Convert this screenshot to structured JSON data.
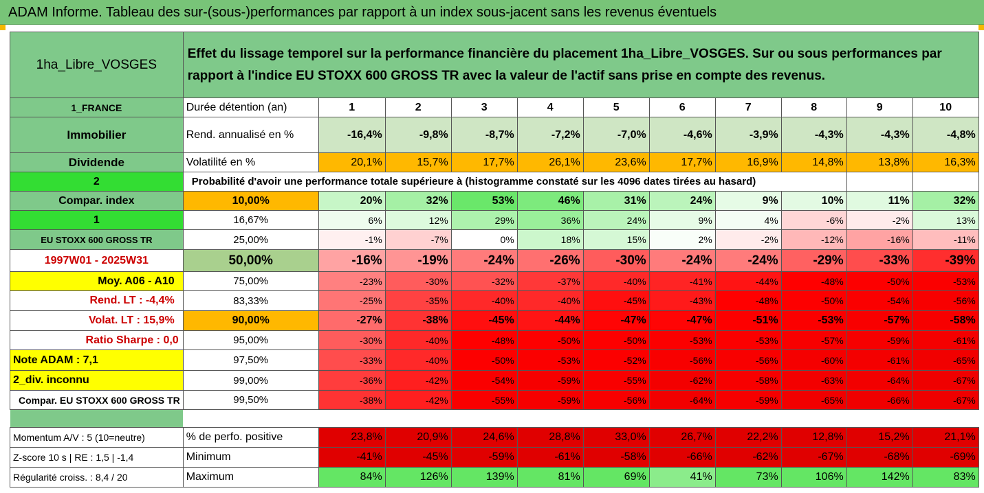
{
  "title": "ADAM Informe. Tableau des sur-(sous-)performances par rapport à un index sous-jacent sans les revenus éventuels",
  "asset_name": "1ha_Libre_VOSGES",
  "description": "Effet du lissage temporel sur la performance financière du placement 1ha_Libre_VOSGES. Sur ou sous performances par rapport à l'indice EU STOXX 600 GROSS TR avec la valeur de l'actif sans prise en compte des revenus.",
  "left_labels": [
    "1_FRANCE",
    "Immobilier",
    "Dividende",
    "2",
    "Compar. index",
    "1",
    "EU STOXX 600 GROSS TR",
    "1997W01 - 2025W31",
    "Moy. A06 - A10",
    "Rend. LT :   -4,4%",
    "Volat. LT :   15,9%",
    "Ratio Sharpe :    0,0",
    "Note ADAM : 7,1",
    "2_div. inconnu",
    "Compar. EU STOXX 600 GROSS TR"
  ],
  "duration_label": "Durée détention (an)",
  "years": [
    "1",
    "2",
    "3",
    "4",
    "5",
    "6",
    "7",
    "8",
    "9",
    "10"
  ],
  "rend_label": "Rend. annualisé en %",
  "rend_values": [
    "-16,4%",
    "-9,8%",
    "-8,7%",
    "-7,2%",
    "-7,0%",
    "-4,6%",
    "-3,9%",
    "-4,3%",
    "-4,3%",
    "-4,8%"
  ],
  "vol_label": "Volatilité en %",
  "vol_values": [
    "20,1%",
    "15,7%",
    "17,7%",
    "26,1%",
    "23,6%",
    "17,7%",
    "16,9%",
    "14,8%",
    "13,8%",
    "16,3%"
  ],
  "prob_label": "Probabilité d'avoir une performance totale supérieure à (histogramme constaté sur les 4096 dates tirées au hasard)",
  "quantiles": [
    {
      "p": "10,00%",
      "v": [
        "20%",
        "32%",
        "53%",
        "46%",
        "31%",
        "24%",
        "9%",
        "10%",
        "11%",
        "32%"
      ]
    },
    {
      "p": "16,67%",
      "v": [
        "6%",
        "12%",
        "29%",
        "36%",
        "24%",
        "9%",
        "4%",
        "-6%",
        "-2%",
        "13%"
      ]
    },
    {
      "p": "25,00%",
      "v": [
        "-1%",
        "-7%",
        "0%",
        "18%",
        "15%",
        "2%",
        "-2%",
        "-12%",
        "-16%",
        "-11%"
      ]
    },
    {
      "p": "50,00%",
      "v": [
        "-16%",
        "-19%",
        "-24%",
        "-26%",
        "-30%",
        "-24%",
        "-24%",
        "-29%",
        "-33%",
        "-39%"
      ]
    },
    {
      "p": "75,00%",
      "v": [
        "-23%",
        "-30%",
        "-32%",
        "-37%",
        "-40%",
        "-41%",
        "-44%",
        "-48%",
        "-50%",
        "-53%"
      ]
    },
    {
      "p": "83,33%",
      "v": [
        "-25%",
        "-35%",
        "-40%",
        "-40%",
        "-45%",
        "-43%",
        "-48%",
        "-50%",
        "-54%",
        "-56%"
      ]
    },
    {
      "p": "90,00%",
      "v": [
        "-27%",
        "-38%",
        "-45%",
        "-44%",
        "-47%",
        "-47%",
        "-51%",
        "-53%",
        "-57%",
        "-58%"
      ]
    },
    {
      "p": "95,00%",
      "v": [
        "-30%",
        "-40%",
        "-48%",
        "-50%",
        "-50%",
        "-53%",
        "-53%",
        "-57%",
        "-59%",
        "-61%"
      ]
    },
    {
      "p": "97,50%",
      "v": [
        "-33%",
        "-40%",
        "-50%",
        "-53%",
        "-52%",
        "-56%",
        "-56%",
        "-60%",
        "-61%",
        "-65%"
      ]
    },
    {
      "p": "99,00%",
      "v": [
        "-36%",
        "-42%",
        "-54%",
        "-59%",
        "-55%",
        "-62%",
        "-58%",
        "-63%",
        "-64%",
        "-67%"
      ]
    },
    {
      "p": "99,50%",
      "v": [
        "-38%",
        "-42%",
        "-55%",
        "-59%",
        "-56%",
        "-64%",
        "-59%",
        "-65%",
        "-66%",
        "-67%"
      ]
    }
  ],
  "bottom_rows": [
    {
      "left": "Momentum A/V : 5 (10=neutre)",
      "label": "% de perfo. positive",
      "v": [
        "23,8%",
        "20,9%",
        "24,6%",
        "28,8%",
        "33,0%",
        "26,7%",
        "22,2%",
        "12,8%",
        "15,2%",
        "21,1%"
      ]
    },
    {
      "left": "Z-score 10 s  |  RE : 1,5  |  -1,4",
      "label": "Minimum",
      "v": [
        "-41%",
        "-45%",
        "-59%",
        "-61%",
        "-58%",
        "-66%",
        "-62%",
        "-67%",
        "-68%",
        "-69%"
      ]
    },
    {
      "left": "Régularité croiss. : 8,4 / 20",
      "label": "Maximum",
      "v": [
        "84%",
        "126%",
        "139%",
        "81%",
        "69%",
        "41%",
        "73%",
        "106%",
        "142%",
        "83%"
      ]
    }
  ],
  "colors": {
    "header_green": "#78c478",
    "label_green": "#7fc98a",
    "bright_green": "#33dd33",
    "orange": "#ffb800",
    "yellow": "#ffff00",
    "dark_red": "#e00000",
    "title_red": "#cc0000"
  }
}
